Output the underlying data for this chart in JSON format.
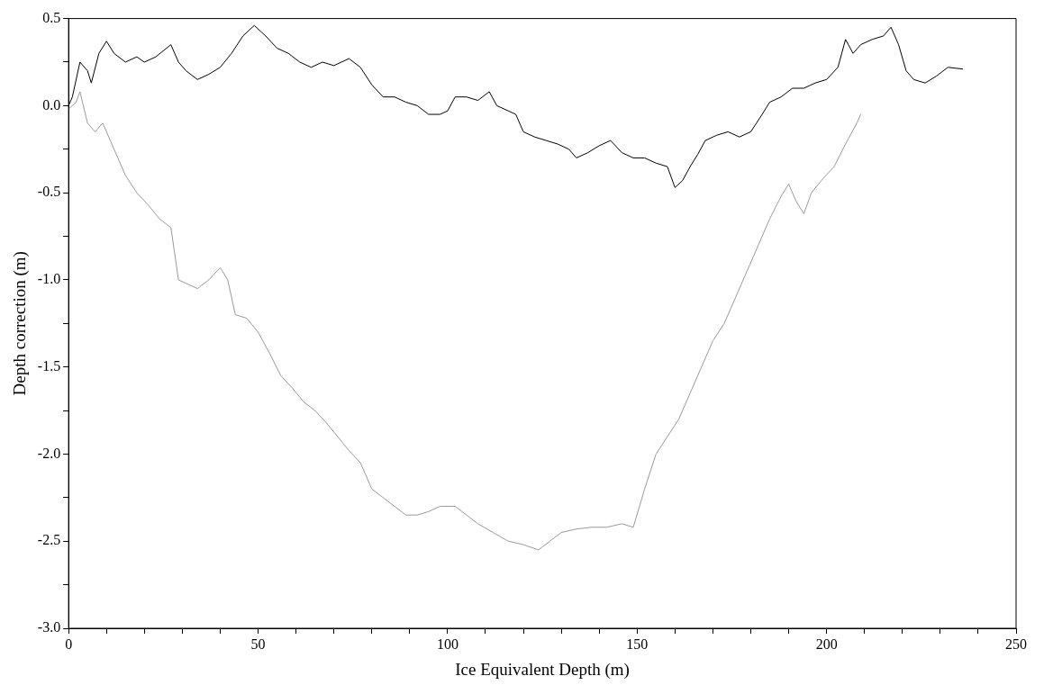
{
  "chart_data": {
    "type": "line",
    "xlabel": "Ice Equivalent Depth (m)",
    "ylabel": "Depth correction (m)",
    "xlim": [
      0,
      250
    ],
    "ylim": [
      -3.0,
      0.5
    ],
    "xticks": [
      0,
      {
        "value": 10,
        "label": null
      },
      {
        "value": 20,
        "label": null
      },
      {
        "value": 30,
        "label": null
      },
      {
        "value": 40,
        "label": null
      },
      50,
      {
        "value": 60,
        "label": null
      },
      {
        "value": 70,
        "label": null
      },
      {
        "value": 80,
        "label": null
      },
      {
        "value": 90,
        "label": null
      },
      100,
      {
        "value": 110,
        "label": null
      },
      {
        "value": 120,
        "label": null
      },
      {
        "value": 130,
        "label": null
      },
      {
        "value": 140,
        "label": null
      },
      150,
      {
        "value": 160,
        "label": null
      },
      {
        "value": 170,
        "label": null
      },
      {
        "value": 180,
        "label": null
      },
      {
        "value": 190,
        "label": null
      },
      200,
      {
        "value": 210,
        "label": null
      },
      {
        "value": 220,
        "label": null
      },
      {
        "value": 230,
        "label": null
      },
      {
        "value": 240,
        "label": null
      },
      250
    ],
    "yticks": [
      {
        "value": -3.0,
        "label": "-3.0"
      },
      {
        "value": -2.75,
        "label": null
      },
      {
        "value": -2.5,
        "label": "-2.5"
      },
      {
        "value": -2.25,
        "label": null
      },
      {
        "value": -2.0,
        "label": "-2.0"
      },
      {
        "value": -1.75,
        "label": null
      },
      {
        "value": -1.5,
        "label": "-1.5"
      },
      {
        "value": -1.25,
        "label": null
      },
      {
        "value": -1.0,
        "label": "-1.0"
      },
      {
        "value": -0.75,
        "label": null
      },
      {
        "value": -0.5,
        "label": "-0.5"
      },
      {
        "value": -0.25,
        "label": null
      },
      {
        "value": 0,
        "label": "0.0"
      },
      {
        "value": 0.25,
        "label": null
      },
      {
        "value": 0.5,
        "label": "0.5"
      }
    ],
    "marker": "none",
    "line_style": "solid",
    "series": [
      {
        "color": "#000000",
        "x": [
          0,
          1,
          3,
          5,
          6,
          8,
          10,
          12,
          15,
          18,
          20,
          23,
          27,
          29,
          31,
          34,
          37,
          40,
          43,
          46,
          49,
          52,
          55,
          58,
          61,
          64,
          67,
          70,
          74,
          77,
          80,
          83,
          86,
          89,
          92,
          95,
          98,
          100,
          102,
          105,
          108,
          111,
          113,
          116,
          118,
          120,
          123,
          126,
          129,
          132,
          134,
          137,
          140,
          143,
          146,
          149,
          152,
          155,
          158,
          160,
          162,
          164,
          166,
          168,
          171,
          174,
          177,
          180,
          183,
          185,
          188,
          191,
          194,
          197,
          200,
          203,
          205,
          207,
          209,
          212,
          215,
          217,
          219,
          221,
          223,
          226,
          229,
          232,
          236
        ],
        "values": [
          0.0,
          0.05,
          0.25,
          0.2,
          0.13,
          0.3,
          0.37,
          0.3,
          0.25,
          0.28,
          0.25,
          0.28,
          0.35,
          0.25,
          0.2,
          0.15,
          0.18,
          0.22,
          0.3,
          0.4,
          0.46,
          0.4,
          0.33,
          0.3,
          0.25,
          0.22,
          0.25,
          0.23,
          0.27,
          0.22,
          0.12,
          0.05,
          0.05,
          0.02,
          0.0,
          -0.05,
          -0.05,
          -0.03,
          0.05,
          0.05,
          0.03,
          0.08,
          0.0,
          -0.03,
          -0.05,
          -0.15,
          -0.18,
          -0.2,
          -0.22,
          -0.25,
          -0.3,
          -0.27,
          -0.23,
          -0.2,
          -0.27,
          -0.3,
          -0.3,
          -0.33,
          -0.35,
          -0.47,
          -0.43,
          -0.35,
          -0.28,
          -0.2,
          -0.17,
          -0.15,
          -0.18,
          -0.15,
          -0.05,
          0.02,
          0.05,
          0.1,
          0.1,
          0.13,
          0.15,
          0.22,
          0.38,
          0.3,
          0.35,
          0.38,
          0.4,
          0.45,
          0.35,
          0.2,
          0.15,
          0.13,
          0.17,
          0.22,
          0.21
        ]
      },
      {
        "color": "#999999",
        "x": [
          0,
          2,
          3,
          5,
          7,
          9,
          11,
          13,
          15,
          18,
          21,
          24,
          27,
          29,
          31,
          34,
          37,
          40,
          42,
          44,
          47,
          50,
          53,
          56,
          59,
          62,
          65,
          68,
          71,
          74,
          77,
          80,
          83,
          86,
          89,
          92,
          95,
          98,
          102,
          105,
          108,
          112,
          116,
          120,
          124,
          127,
          130,
          134,
          138,
          142,
          146,
          149,
          152,
          155,
          158,
          161,
          164,
          167,
          170,
          173,
          176,
          179,
          182,
          185,
          188,
          190,
          192,
          194,
          196,
          199,
          202,
          205,
          208,
          209
        ],
        "values": [
          -0.02,
          0.02,
          0.08,
          -0.1,
          -0.15,
          -0.1,
          -0.2,
          -0.3,
          -0.4,
          -0.5,
          -0.57,
          -0.65,
          -0.7,
          -1.0,
          -1.02,
          -1.05,
          -1.0,
          -0.93,
          -1.0,
          -1.2,
          -1.22,
          -1.3,
          -1.42,
          -1.55,
          -1.62,
          -1.7,
          -1.75,
          -1.82,
          -1.9,
          -1.98,
          -2.05,
          -2.2,
          -2.25,
          -2.3,
          -2.35,
          -2.35,
          -2.33,
          -2.3,
          -2.3,
          -2.35,
          -2.4,
          -2.45,
          -2.5,
          -2.52,
          -2.55,
          -2.5,
          -2.45,
          -2.43,
          -2.42,
          -2.42,
          -2.4,
          -2.42,
          -2.2,
          -2.0,
          -1.9,
          -1.8,
          -1.65,
          -1.5,
          -1.35,
          -1.25,
          -1.1,
          -0.95,
          -0.8,
          -0.65,
          -0.52,
          -0.45,
          -0.55,
          -0.62,
          -0.5,
          -0.42,
          -0.35,
          -0.22,
          -0.1,
          -0.05
        ]
      }
    ]
  }
}
